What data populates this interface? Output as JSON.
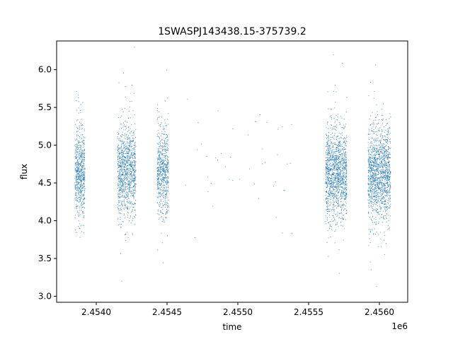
{
  "chart_data": {
    "type": "scatter",
    "title": "1SWASPJ143438.15-375739.2",
    "xlabel": "time",
    "ylabel": "flux",
    "x_offset_label": "1e6",
    "xlim": [
      2453720,
      2456200
    ],
    "ylim": [
      2.92,
      6.38
    ],
    "xticks": [
      2453900,
      2454000,
      2454200,
      2454300,
      2454500,
      2454800,
      2455000,
      2455300,
      2455500,
      2455800,
      2456000
    ],
    "xtick_values": [
      2454000,
      2454500,
      2455000,
      2455500,
      2456000
    ],
    "xtick_labels": [
      "2.4540",
      "2.4545",
      "2.4550",
      "2.4555",
      "2.4560"
    ],
    "yticks": [
      3.0,
      3.5,
      4.0,
      4.5,
      5.0,
      5.5,
      6.0
    ],
    "ytick_labels": [
      "3.0",
      "3.5",
      "4.0",
      "4.5",
      "5.0",
      "5.5",
      "6.0"
    ],
    "grid": false,
    "marker_color": "#1f77b4",
    "series": [
      {
        "seasons": [
          {
            "x_range": [
              2453850,
              2453920
            ],
            "center": 4.65,
            "spread": 0.28,
            "count": 700
          },
          {
            "x_range": [
              2454150,
              2454280
            ],
            "center": 4.65,
            "spread": 0.3,
            "count": 1100
          },
          {
            "x_range": [
              2454430,
              2454510
            ],
            "center": 4.65,
            "spread": 0.3,
            "count": 650
          },
          {
            "x_range": [
              2454620,
              2455400
            ],
            "center": 4.85,
            "spread": 0.4,
            "count": 45
          },
          {
            "x_range": [
              2455620,
              2455770
            ],
            "center": 4.62,
            "spread": 0.3,
            "count": 1400
          },
          {
            "x_range": [
              2455920,
              2456080
            ],
            "center": 4.62,
            "spread": 0.3,
            "count": 1500
          }
        ]
      }
    ]
  }
}
